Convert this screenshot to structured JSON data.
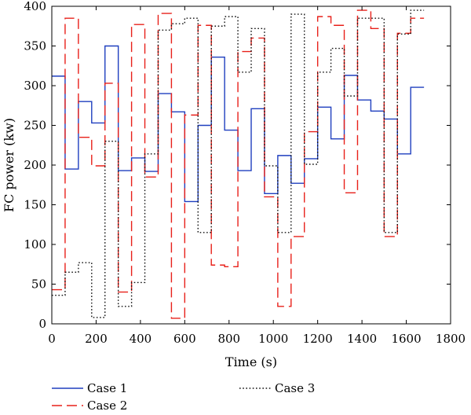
{
  "chart_data": {
    "type": "line",
    "xlabel": "Time (s)",
    "ylabel": "FC power (kw)",
    "xlim": [
      0,
      1800
    ],
    "ylim": [
      0,
      400
    ],
    "xticks": [
      0,
      200,
      400,
      600,
      800,
      1000,
      1200,
      1400,
      1600,
      1800
    ],
    "yticks": [
      0,
      50,
      100,
      150,
      200,
      250,
      300,
      350,
      400
    ],
    "grid": false,
    "legend_position": "bottom",
    "step": true,
    "series": [
      {
        "name": "Case 1",
        "color": "#1f3fbf",
        "dash": "solid",
        "x": [
          0,
          60,
          120,
          180,
          240,
          300,
          360,
          420,
          480,
          540,
          600,
          660,
          720,
          780,
          840,
          900,
          960,
          1020,
          1080,
          1140,
          1200,
          1260,
          1320,
          1380,
          1440,
          1500,
          1560,
          1620,
          1680
        ],
        "y": [
          312,
          195,
          280,
          253,
          350,
          193,
          209,
          192,
          290,
          267,
          154,
          250,
          336,
          244,
          193,
          271,
          164,
          212,
          177,
          208,
          273,
          233,
          313,
          282,
          268,
          258,
          214,
          298,
          298
        ]
      },
      {
        "name": "Case 2",
        "color": "#e8201a",
        "dash": "long-dash",
        "x": [
          0,
          60,
          120,
          180,
          240,
          300,
          360,
          420,
          480,
          540,
          600,
          660,
          720,
          780,
          840,
          900,
          960,
          1020,
          1080,
          1140,
          1200,
          1260,
          1320,
          1380,
          1440,
          1500,
          1560,
          1620,
          1680
        ],
        "y": [
          43,
          385,
          235,
          199,
          303,
          40,
          377,
          185,
          391,
          7,
          263,
          376,
          74,
          72,
          343,
          360,
          160,
          22,
          110,
          242,
          387,
          376,
          165,
          395,
          372,
          110,
          366,
          385,
          385
        ]
      },
      {
        "name": "Case 3",
        "color": "#111111",
        "dash": "dotted",
        "x": [
          0,
          60,
          120,
          180,
          240,
          300,
          360,
          420,
          480,
          540,
          600,
          660,
          720,
          780,
          840,
          900,
          960,
          1020,
          1080,
          1140,
          1200,
          1260,
          1320,
          1380,
          1440,
          1500,
          1560,
          1620,
          1680
        ],
        "y": [
          36,
          65,
          77,
          8,
          230,
          22,
          52,
          214,
          370,
          378,
          385,
          115,
          375,
          387,
          317,
          372,
          199,
          115,
          390,
          201,
          317,
          347,
          287,
          385,
          385,
          115,
          365,
          395,
          395
        ]
      }
    ]
  }
}
